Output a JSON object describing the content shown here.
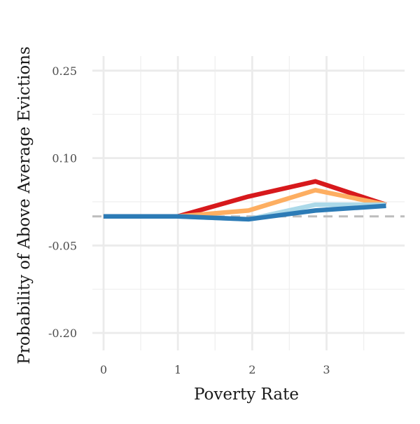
{
  "chart_data": {
    "type": "line",
    "xlabel": "Poverty Rate",
    "ylabel": "Probability of Above Average Evictions",
    "xlim": [
      -0.15,
      4.05
    ],
    "ylim": [
      -0.23,
      0.275
    ],
    "x_ticks": [
      0,
      1,
      2,
      3
    ],
    "x_tick_labels": [
      "0",
      "1",
      "2",
      "3"
    ],
    "y_ticks": [
      -0.2,
      -0.05,
      0.1,
      0.25
    ],
    "y_tick_labels": [
      "-0.20",
      "-0.05",
      "0.10",
      "0.25"
    ],
    "grid": true,
    "reference_line": {
      "y": 0,
      "color": "#bdbdbd",
      "style": "dashed"
    },
    "series": [
      {
        "color": "#d7191c",
        "x": [
          0,
          1,
          1.95,
          2.85,
          3.8
        ],
        "y": [
          0,
          0,
          0.034,
          0.06,
          0.02
        ]
      },
      {
        "color": "#fdae61",
        "x": [
          0,
          1,
          1.95,
          2.85,
          3.8
        ],
        "y": [
          0,
          0,
          0.01,
          0.045,
          0.02
        ]
      },
      {
        "color": "#abd9e9",
        "x": [
          0,
          1,
          1.95,
          2.85,
          3.8
        ],
        "y": [
          0,
          0,
          -0.005,
          0.02,
          0.02
        ]
      },
      {
        "color": "#2c7bb6",
        "x": [
          0,
          1,
          1.95,
          2.85,
          3.8
        ],
        "y": [
          0,
          0,
          -0.005,
          0.01,
          0.018
        ]
      }
    ]
  }
}
